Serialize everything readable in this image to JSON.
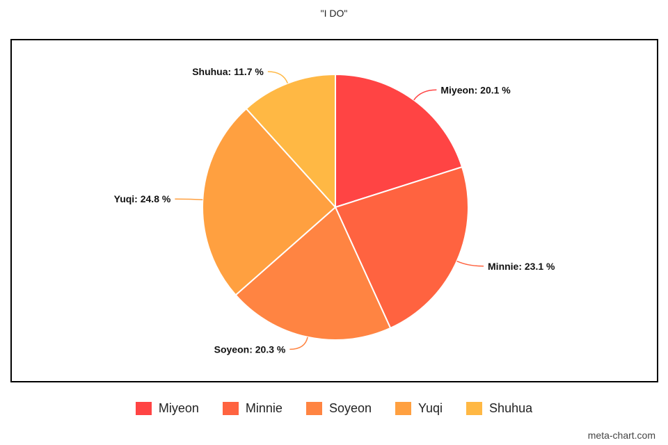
{
  "chart_data": {
    "type": "pie",
    "title": "\"I DO\"",
    "categories": [
      "Miyeon",
      "Minnie",
      "Soyeon",
      "Yuqi",
      "Shuhua"
    ],
    "values": [
      20.1,
      23.1,
      20.3,
      24.8,
      11.7
    ],
    "unit": "%",
    "slice_labels": [
      "Miyeon: 20.1 %",
      "Minnie: 23.1 %",
      "Soyeon: 20.3 %",
      "Yuqi: 24.8 %",
      "Shuhua: 11.7 %"
    ],
    "colors": [
      "#ff4444",
      "#ff6340",
      "#ff8442",
      "#ffa040",
      "#ffb844"
    ],
    "legend_position": "bottom",
    "start": "top, clockwise"
  },
  "legend": {
    "items": [
      {
        "label": "Miyeon",
        "color": "#ff4444"
      },
      {
        "label": "Minnie",
        "color": "#ff6340"
      },
      {
        "label": "Soyeon",
        "color": "#ff8442"
      },
      {
        "label": "Yuqi",
        "color": "#ffa040"
      },
      {
        "label": "Shuhua",
        "color": "#ffb844"
      }
    ]
  },
  "credit": "meta-chart.com"
}
